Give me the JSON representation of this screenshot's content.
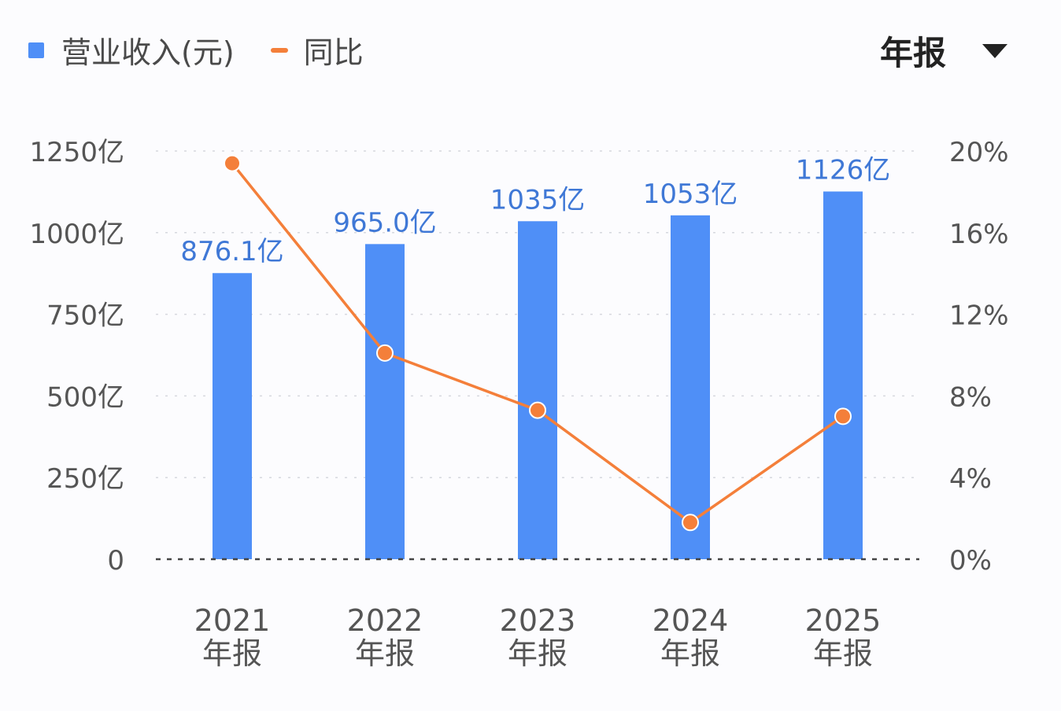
{
  "legend": {
    "bar_label": "营业收入(元)",
    "line_label": "同比"
  },
  "period_selector": {
    "value": "年报",
    "icon": "caret-down-icon"
  },
  "colors": {
    "bar": "#4f8ff7",
    "line": "#f47f3a",
    "data_label": "#3f78d6",
    "axis_text": "#555555",
    "grid": "#d6d8de",
    "baseline": "#444444"
  },
  "chart_data": {
    "type": "bar",
    "categories": [
      "2021\n年报",
      "2022\n年报",
      "2023\n年报",
      "2024\n年报",
      "2025\n年报"
    ],
    "series": [
      {
        "name": "营业收入(元)",
        "type": "bar",
        "axis": "left",
        "values": [
          876.1,
          965.0,
          1035,
          1053,
          1126
        ],
        "labels": [
          "876.1亿",
          "965.0亿",
          "1035亿",
          "1053亿",
          "1126亿"
        ]
      },
      {
        "name": "同比",
        "type": "line",
        "axis": "right",
        "values": [
          19.4,
          10.1,
          7.3,
          1.8,
          7.0
        ]
      }
    ],
    "y_left": {
      "ylim": [
        0,
        1250
      ],
      "ticks": [
        0,
        250,
        500,
        750,
        1000,
        1250
      ],
      "tick_labels": [
        "0",
        "250亿",
        "500亿",
        "750亿",
        "1000亿",
        "1250亿"
      ]
    },
    "y_right": {
      "ylim": [
        0,
        20
      ],
      "ticks": [
        0,
        4,
        8,
        12,
        16,
        20
      ],
      "tick_labels": [
        "0%",
        "4%",
        "8%",
        "12%",
        "16%",
        "20%"
      ]
    },
    "grid": true,
    "legend_position": "top-left"
  }
}
